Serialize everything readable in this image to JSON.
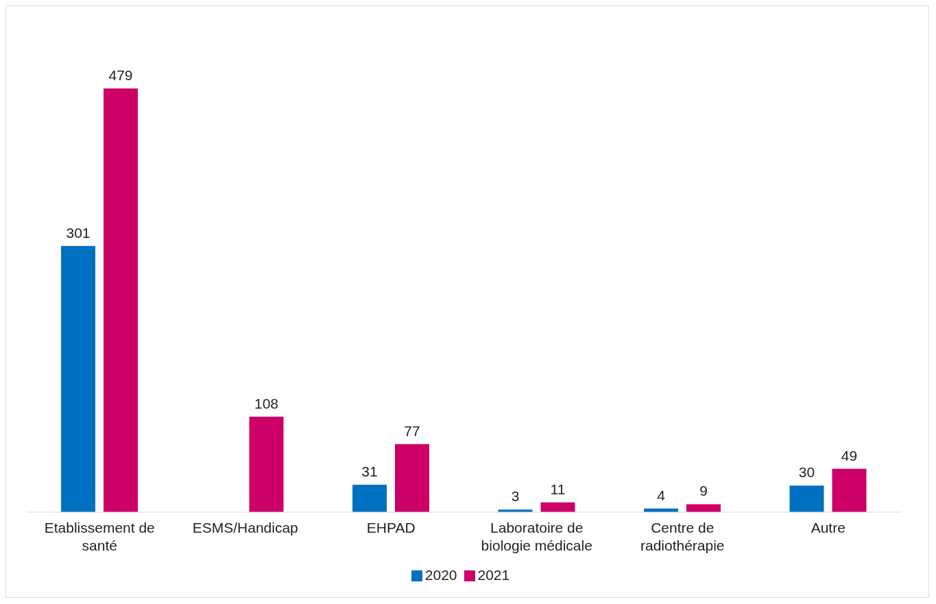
{
  "chart_data": {
    "type": "bar",
    "categories": [
      "Etablissement de santé",
      "ESMS/Handicap",
      "EHPAD",
      "Laboratoire de biologie médicale",
      "Centre de radiothérapie",
      "Autre"
    ],
    "series": [
      {
        "name": "2020",
        "color": "#0070c0",
        "values": [
          301,
          null,
          31,
          3,
          4,
          30
        ]
      },
      {
        "name": "2021",
        "color": "#cc0066",
        "values": [
          479,
          108,
          77,
          11,
          9,
          49
        ]
      }
    ],
    "data_labels": true,
    "legend": "bottom",
    "grid": false
  }
}
